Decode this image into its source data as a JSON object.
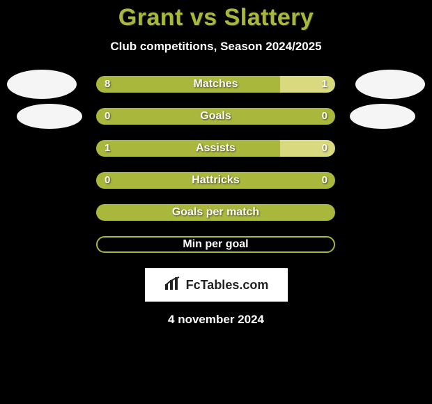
{
  "title": "Grant vs Slattery",
  "subtitle": "Club competitions, Season 2024/2025",
  "date": "4 november 2024",
  "logo": {
    "text": "FcTables.com"
  },
  "colors": {
    "accent": "#a9b83d",
    "accent_light": "#d9d97f",
    "background": "#000000",
    "avatar": "#f5f5f5",
    "white": "#ffffff"
  },
  "stats": [
    {
      "label": "Matches",
      "left_value": "8",
      "right_value": "1",
      "left_pct": 77,
      "right_pct": 23,
      "left_color": "#a9b83d",
      "right_color": "#d9d97f",
      "show_left_avatar": true,
      "show_right_avatar": true,
      "avatar_size": "big",
      "border_only": false
    },
    {
      "label": "Goals",
      "left_value": "0",
      "right_value": "0",
      "left_pct": 100,
      "right_pct": 0,
      "left_color": "#a9b83d",
      "right_color": "#d9d97f",
      "show_left_avatar": true,
      "show_right_avatar": true,
      "avatar_size": "small",
      "border_only": false
    },
    {
      "label": "Assists",
      "left_value": "1",
      "right_value": "0",
      "left_pct": 77,
      "right_pct": 23,
      "left_color": "#a9b83d",
      "right_color": "#d9d97f",
      "show_left_avatar": false,
      "show_right_avatar": false,
      "border_only": false
    },
    {
      "label": "Hattricks",
      "left_value": "0",
      "right_value": "0",
      "left_pct": 100,
      "right_pct": 0,
      "left_color": "#a9b83d",
      "right_color": "#d9d97f",
      "show_left_avatar": false,
      "show_right_avatar": false,
      "border_only": false
    },
    {
      "label": "Goals per match",
      "left_value": "",
      "right_value": "",
      "left_pct": 100,
      "right_pct": 0,
      "left_color": "#a9b83d",
      "right_color": "#d9d97f",
      "show_left_avatar": false,
      "show_right_avatar": false,
      "border_only": false
    },
    {
      "label": "Min per goal",
      "left_value": "",
      "right_value": "",
      "left_pct": 0,
      "right_pct": 0,
      "left_color": "#a9b83d",
      "right_color": "#d9d97f",
      "show_left_avatar": false,
      "show_right_avatar": false,
      "border_only": true
    }
  ]
}
